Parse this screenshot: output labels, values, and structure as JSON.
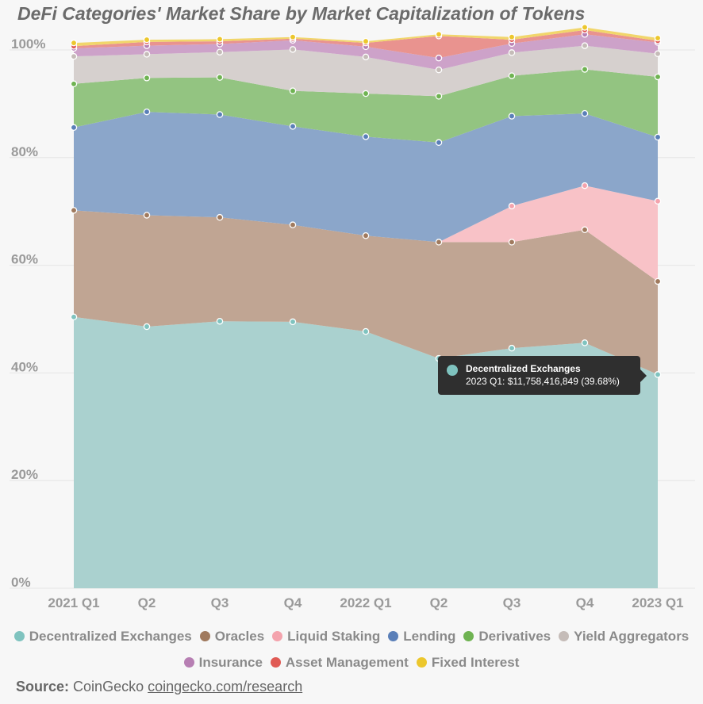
{
  "title": "DeFi Categories' Market Share by Market Capitalization of Tokens",
  "source": {
    "label": "Source:",
    "name": "CoinGecko",
    "link": "coingecko.com/research"
  },
  "tooltip": {
    "series": "Decentralized Exchanges",
    "text": "2023 Q1: $11,758,416,849 (39.68%)",
    "color": "#7fc3bf",
    "index": 8
  },
  "chart_data": {
    "type": "area",
    "stacked": true,
    "title": "DeFi Categories' Market Share by Market Capitalization of Tokens",
    "categories": [
      "2021 Q1",
      "Q2",
      "Q3",
      "Q4",
      "2022 Q1",
      "Q2",
      "Q3",
      "Q4",
      "2023 Q1"
    ],
    "ylim": [
      0,
      100
    ],
    "yticks": [
      "0%",
      "20%",
      "40%",
      "60%",
      "80%",
      "100%"
    ],
    "series": [
      {
        "name": "Decentralized Exchanges",
        "color": "#7fc3bf",
        "fill": "#aad1cf",
        "values": [
          50.4,
          48.6,
          49.6,
          49.5,
          47.7,
          42.7,
          44.6,
          45.6,
          39.7
        ]
      },
      {
        "name": "Oracles",
        "color": "#a07a5e",
        "fill": "#c0a593",
        "values": [
          19.8,
          20.7,
          19.3,
          18.0,
          17.8,
          21.6,
          19.7,
          21.0,
          17.3
        ]
      },
      {
        "name": "Liquid Staking",
        "color": "#f4a3ad",
        "fill": "#f8c2c7",
        "values": [
          0,
          0,
          0,
          0,
          0,
          0,
          6.7,
          8.2,
          14.9
        ]
      },
      {
        "name": "Lending",
        "color": "#5a7fb8",
        "fill": "#8ba6ca",
        "values": [
          15.4,
          19.2,
          19.1,
          18.3,
          18.4,
          18.5,
          16.7,
          13.4,
          11.9
        ]
      },
      {
        "name": "Derivatives",
        "color": "#6fb352",
        "fill": "#93c481",
        "values": [
          8.1,
          6.3,
          6.9,
          6.6,
          8.0,
          8.6,
          7.5,
          8.2,
          11.2
        ]
      },
      {
        "name": "Yield Aggregators",
        "color": "#c5bcb8",
        "fill": "#d6d0ce",
        "values": [
          5.1,
          4.4,
          4.7,
          7.7,
          6.8,
          4.9,
          4.3,
          4.4,
          4.3
        ]
      },
      {
        "name": "Insurance",
        "color": "#b77fb3",
        "fill": "#cda2c9",
        "values": [
          1.5,
          1.6,
          1.5,
          1.7,
          1.9,
          2.2,
          1.7,
          2.1,
          2.1
        ]
      },
      {
        "name": "Asset Management",
        "color": "#e05a54",
        "fill": "#e9938f",
        "values": [
          0.4,
          0.7,
          0.5,
          0.3,
          0.7,
          4.1,
          0.7,
          0.8,
          0.3
        ]
      },
      {
        "name": "Fixed Interest",
        "color": "#ecc72d",
        "fill": "#f1d66b",
        "values": [
          0.6,
          0.4,
          0.4,
          0.3,
          0.3,
          0.3,
          0.5,
          0.5,
          0.5
        ]
      }
    ]
  }
}
